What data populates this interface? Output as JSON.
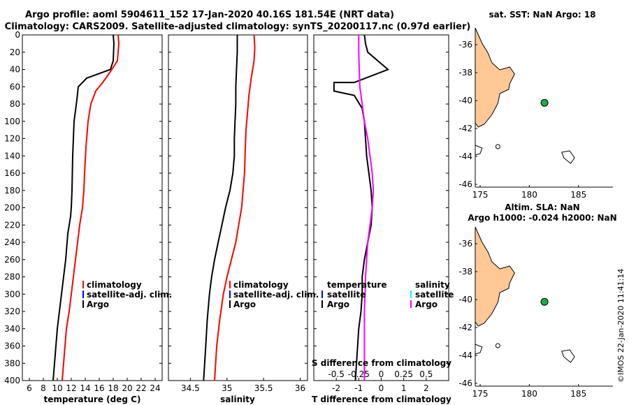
{
  "header": {
    "title_line1": "Argo profile: aoml 5904611_152 17-Jan-2020 40.16S 181.54E (NRT data)",
    "title_line2": "Climatology: CARS2009. Satellite-adjusted climatology: synTS_20200117.nc (0.97d earlier)"
  },
  "colors": {
    "climatology": "#ff0000",
    "satellite": "#0000ff",
    "argo": "#000000",
    "salinity_satellite": "#00ffff",
    "salinity_argo": "#ff00ff",
    "land": "#ffc896",
    "marker": "#22aa44"
  },
  "chart_data": [
    {
      "id": "temperature",
      "type": "line",
      "xlabel": "temperature (deg C)",
      "ylabel": "",
      "xlim": [
        5,
        25
      ],
      "ylim": [
        0,
        400
      ],
      "y_inverted": true,
      "x_ticks": [
        "6",
        "8",
        "10",
        "12",
        "14",
        "16",
        "18",
        "20",
        "22",
        "24"
      ],
      "x_tick_values": [
        6,
        8,
        10,
        12,
        14,
        16,
        18,
        20,
        22,
        24
      ],
      "y_ticks": [
        "0",
        "20",
        "40",
        "60",
        "80",
        "100",
        "120",
        "140",
        "160",
        "180",
        "200",
        "220",
        "240",
        "260",
        "280",
        "300",
        "320",
        "340",
        "360",
        "380",
        "400"
      ],
      "y_tick_values": [
        0,
        20,
        40,
        60,
        80,
        100,
        120,
        140,
        160,
        180,
        200,
        220,
        240,
        260,
        280,
        300,
        320,
        340,
        360,
        380,
        400
      ],
      "series": [
        {
          "name": "climatology",
          "color": "#ff0000",
          "x": [
            18.7,
            18.8,
            18.6,
            17.8,
            16.5,
            15.5,
            14.8,
            14.4,
            14.1,
            13.9,
            13.8,
            13.6,
            13.2,
            12.9,
            12.6,
            12.3,
            12.0,
            11.7,
            11.3,
            11.0,
            10.7
          ],
          "depth": [
            0,
            10,
            30,
            40,
            55,
            65,
            80,
            100,
            130,
            160,
            180,
            200,
            220,
            240,
            260,
            280,
            300,
            320,
            340,
            370,
            400
          ]
        },
        {
          "name": "Argo",
          "color": "#000000",
          "x": [
            18.0,
            18.1,
            18.0,
            17.6,
            14.2,
            13.0,
            12.8,
            12.4,
            12.2,
            12.1,
            12.0,
            11.9,
            11.5,
            11.2,
            10.9,
            10.6,
            10.3,
            10.0,
            9.7,
            9.4
          ],
          "depth": [
            0,
            10,
            30,
            40,
            50,
            60,
            75,
            100,
            140,
            180,
            200,
            210,
            230,
            260,
            280,
            300,
            320,
            340,
            370,
            400
          ]
        }
      ],
      "legend": [
        "climatology",
        "satellite-adj. clim.",
        "Argo"
      ]
    },
    {
      "id": "salinity",
      "type": "line",
      "xlabel": "salinity",
      "xlim": [
        34.2,
        36.1
      ],
      "ylim": [
        0,
        400
      ],
      "y_inverted": true,
      "x_ticks": [
        "34.5",
        "35",
        "35.5",
        "36"
      ],
      "x_tick_values": [
        34.5,
        35,
        35.5,
        36
      ],
      "series": [
        {
          "name": "climatology",
          "color": "#ff0000",
          "x": [
            35.37,
            35.38,
            35.37,
            35.33,
            35.3,
            35.28,
            35.26,
            35.25,
            35.24,
            35.22,
            35.2,
            35.16,
            35.12,
            35.06,
            35.0,
            34.95,
            34.9,
            34.86,
            34.83
          ],
          "depth": [
            0,
            15,
            30,
            50,
            70,
            90,
            110,
            130,
            160,
            180,
            200,
            220,
            240,
            260,
            280,
            300,
            330,
            360,
            400
          ]
        },
        {
          "name": "Argo",
          "color": "#000000",
          "x": [
            35.14,
            35.14,
            35.13,
            35.12,
            35.12,
            35.11,
            35.1,
            35.1,
            35.08,
            35.04,
            34.98,
            34.93,
            34.88,
            34.83,
            34.79,
            34.76,
            34.73,
            34.71,
            34.68
          ],
          "depth": [
            0,
            20,
            40,
            60,
            80,
            100,
            120,
            140,
            160,
            180,
            200,
            220,
            240,
            260,
            280,
            300,
            330,
            360,
            400
          ]
        }
      ],
      "legend": [
        "climatology",
        "satellite-adj. clim.",
        "Argo"
      ]
    },
    {
      "id": "difference",
      "type": "line",
      "xlabel": "T difference from climatology",
      "xlabel_top": "S difference from climatology",
      "xlim": [
        -3,
        3
      ],
      "ylim": [
        0,
        400
      ],
      "y_inverted": true,
      "x_ticks": [
        "-2",
        "-1",
        "0",
        "1",
        "2"
      ],
      "x_tick_values": [
        -2,
        -1,
        0,
        1,
        2
      ],
      "s_ticks": [
        "-0.5",
        "-0.25",
        "0",
        "0.25",
        "0.5"
      ],
      "s_tick_values": [
        -2,
        -1,
        0,
        1,
        2
      ],
      "series": [
        {
          "name": "temperature Argo",
          "color": "#000000",
          "x": [
            -0.75,
            -0.7,
            -0.6,
            0.3,
            -1.2,
            -2.1,
            -2.1,
            -1.2,
            -0.85,
            -0.75,
            -0.7,
            -0.65,
            -0.55,
            -0.45,
            -0.4,
            -0.45,
            -0.6,
            -0.75,
            -0.85,
            -0.85,
            -0.9,
            -1.0,
            -1.05,
            -1.1,
            -1.15
          ],
          "depth": [
            0,
            10,
            20,
            40,
            55,
            55,
            65,
            70,
            85,
            100,
            120,
            140,
            160,
            180,
            200,
            220,
            240,
            260,
            280,
            300,
            320,
            340,
            360,
            380,
            400
          ]
        },
        {
          "name": "salinity Argo",
          "color": "#ff00ff",
          "x": [
            -1.0,
            -1.0,
            -0.98,
            -0.95,
            -0.85,
            -0.75,
            -0.6,
            -0.5,
            -0.4,
            -0.35,
            -0.4,
            -0.5,
            -0.6,
            -0.65,
            -0.7,
            -0.72,
            -0.75,
            -0.75,
            -0.75,
            -0.75,
            -0.75
          ],
          "depth": [
            0,
            20,
            40,
            60,
            80,
            100,
            120,
            140,
            160,
            180,
            200,
            220,
            240,
            260,
            280,
            300,
            320,
            340,
            360,
            380,
            400
          ]
        }
      ],
      "legend_left_title": "temperature",
      "legend_right_title": "salinity",
      "legend": [
        "satellite",
        "Argo"
      ]
    },
    {
      "id": "map_sst",
      "type": "scatter",
      "title": "sat. SST: NaN Argo: 18",
      "xlim": [
        174.5,
        188.5
      ],
      "ylim": [
        -46.2,
        -34.8
      ],
      "x_ticks": [
        "175",
        "180",
        "185"
      ],
      "x_tick_values": [
        175,
        180,
        185
      ],
      "y_ticks": [
        "-36",
        "-38",
        "-40",
        "-42",
        "-44",
        "-46"
      ],
      "y_tick_values": [
        -36,
        -38,
        -40,
        -42,
        -44,
        -46
      ],
      "points": [
        {
          "label": "Argo float",
          "x": 181.54,
          "y": -40.16
        }
      ]
    },
    {
      "id": "map_sla",
      "type": "scatter",
      "title": "Altim. SLA: NaN",
      "subtitle": "Argo h1000: -0.024 h2000: NaN",
      "xlim": [
        174.5,
        188.5
      ],
      "ylim": [
        -46.2,
        -34.8
      ],
      "x_ticks": [
        "175",
        "180",
        "185"
      ],
      "x_tick_values": [
        175,
        180,
        185
      ],
      "y_ticks": [
        "-36",
        "-38",
        "-40",
        "-42",
        "-44",
        "-46"
      ],
      "y_tick_values": [
        -36,
        -38,
        -40,
        -42,
        -44,
        -46
      ],
      "points": [
        {
          "label": "Argo float",
          "x": 181.54,
          "y": -40.16
        }
      ]
    }
  ],
  "footer": {
    "stamp": "©IMOS 22-Jan-2020 11:41:14"
  }
}
